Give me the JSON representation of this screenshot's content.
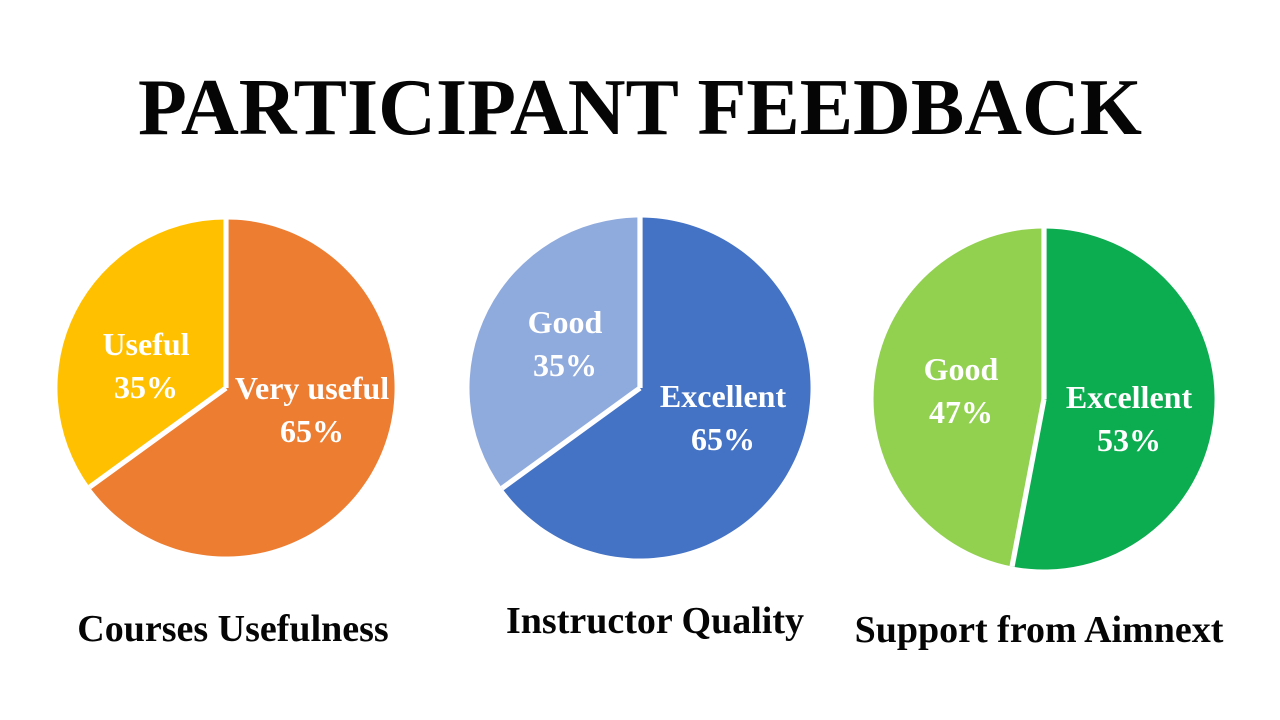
{
  "title": "PARTICIPANT FEEDBACK",
  "chart_data": [
    {
      "type": "pie",
      "title": "Courses Usefulness",
      "start_angle_deg": 0,
      "direction": "clockwise",
      "legend": "none",
      "labels_inside": true,
      "slices": [
        {
          "label": "Very useful",
          "pct_label": "65%",
          "value": 65,
          "color": "#ED7D31"
        },
        {
          "label": "Useful",
          "pct_label": "35%",
          "value": 35,
          "color": "#FFC000"
        }
      ]
    },
    {
      "type": "pie",
      "title": "Instructor Quality",
      "start_angle_deg": 0,
      "direction": "clockwise",
      "legend": "none",
      "labels_inside": true,
      "slices": [
        {
          "label": "Excellent",
          "pct_label": "65%",
          "value": 65,
          "color": "#4472C4"
        },
        {
          "label": "Good",
          "pct_label": "35%",
          "value": 35,
          "color": "#8FAADC"
        }
      ]
    },
    {
      "type": "pie",
      "title": "Support from Aimnext",
      "start_angle_deg": 0,
      "direction": "clockwise",
      "legend": "none",
      "labels_inside": true,
      "slices": [
        {
          "label": "Excellent",
          "pct_label": "53%",
          "value": 53,
          "color": "#0CAC50"
        },
        {
          "label": "Good",
          "pct_label": "47%",
          "value": 47,
          "color": "#92D050"
        }
      ]
    }
  ],
  "divider_color": "#FFFFFF",
  "background_color": "#FFFFFF"
}
